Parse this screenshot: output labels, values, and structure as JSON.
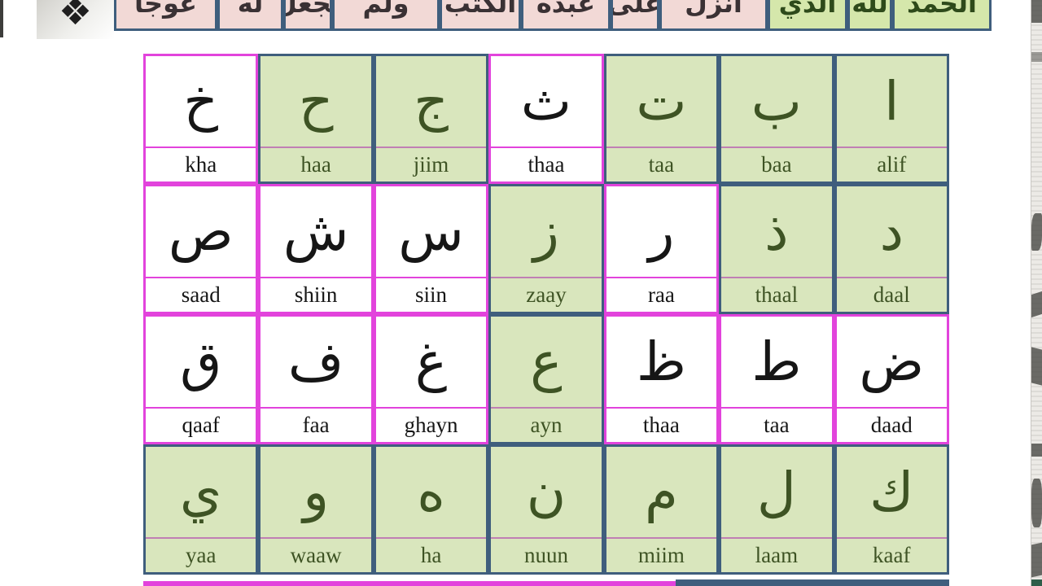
{
  "colors": {
    "magenta_border": "#e243dc",
    "slate_border": "#3f5e7d",
    "cell_green_bg": "#d9e6bd",
    "green_text": "#3e5324",
    "dark_text": "#161616",
    "banner_pink_bg": "#f2d9d6",
    "banner_green_bg": "#d5e7ab"
  },
  "ornament": {
    "glyph": "❖"
  },
  "banner": {
    "cells": [
      {
        "text": "عوجا",
        "bg": "pink"
      },
      {
        "text": "له",
        "bg": "pink"
      },
      {
        "text": "يجعل",
        "bg": "pink"
      },
      {
        "text": "ولم",
        "bg": "pink"
      },
      {
        "text": "الكتب",
        "bg": "pink"
      },
      {
        "text": "عبده",
        "bg": "pink"
      },
      {
        "text": "على",
        "bg": "pink"
      },
      {
        "text": "أنزل",
        "bg": "pink"
      },
      {
        "text": "الذي",
        "bg": "green"
      },
      {
        "text": "لله",
        "bg": "green"
      },
      {
        "text": "الحمد",
        "bg": "green"
      }
    ],
    "widths": [
      127,
      81,
      60,
      132,
      100,
      110,
      60,
      133,
      98,
      55,
      122
    ]
  },
  "grid": {
    "rows": [
      {
        "cells": [
          {
            "letter": "خ",
            "name": "kha",
            "variant": "white"
          },
          {
            "letter": "ح",
            "name": "haa",
            "variant": "green"
          },
          {
            "letter": "ج",
            "name": "jiim",
            "variant": "green"
          },
          {
            "letter": "ث",
            "name": "thaa",
            "variant": "white"
          },
          {
            "letter": "ت",
            "name": "taa",
            "variant": "green"
          },
          {
            "letter": "ب",
            "name": "baa",
            "variant": "green"
          },
          {
            "letter": "ا",
            "name": "alif",
            "variant": "green"
          }
        ]
      },
      {
        "cells": [
          {
            "letter": "ص",
            "name": "saad",
            "variant": "white"
          },
          {
            "letter": "ش",
            "name": "shiin",
            "variant": "white"
          },
          {
            "letter": "س",
            "name": "siin",
            "variant": "white"
          },
          {
            "letter": "ز",
            "name": "zaay",
            "variant": "green"
          },
          {
            "letter": "ر",
            "name": "raa",
            "variant": "white"
          },
          {
            "letter": "ذ",
            "name": "thaal",
            "variant": "green"
          },
          {
            "letter": "د",
            "name": "daal",
            "variant": "green"
          }
        ]
      },
      {
        "cells": [
          {
            "letter": "ق",
            "name": "qaaf",
            "variant": "white"
          },
          {
            "letter": "ف",
            "name": "faa",
            "variant": "white"
          },
          {
            "letter": "غ",
            "name": "ghayn",
            "variant": "white"
          },
          {
            "letter": "ع",
            "name": "ayn",
            "variant": "green"
          },
          {
            "letter": "ظ",
            "name": "thaa",
            "variant": "white"
          },
          {
            "letter": "ط",
            "name": "taa",
            "variant": "white"
          },
          {
            "letter": "ض",
            "name": "daad",
            "variant": "white"
          }
        ]
      },
      {
        "cells": [
          {
            "letter": "ي",
            "name": "yaa",
            "variant": "green"
          },
          {
            "letter": "و",
            "name": "waaw",
            "variant": "green"
          },
          {
            "letter": "ه",
            "name": "ha",
            "variant": "green"
          },
          {
            "letter": "ن",
            "name": "nuun",
            "variant": "green"
          },
          {
            "letter": "م",
            "name": "miim",
            "variant": "green"
          },
          {
            "letter": "ل",
            "name": "laam",
            "variant": "green"
          },
          {
            "letter": "ك",
            "name": "kaaf",
            "variant": "green"
          }
        ]
      }
    ]
  }
}
